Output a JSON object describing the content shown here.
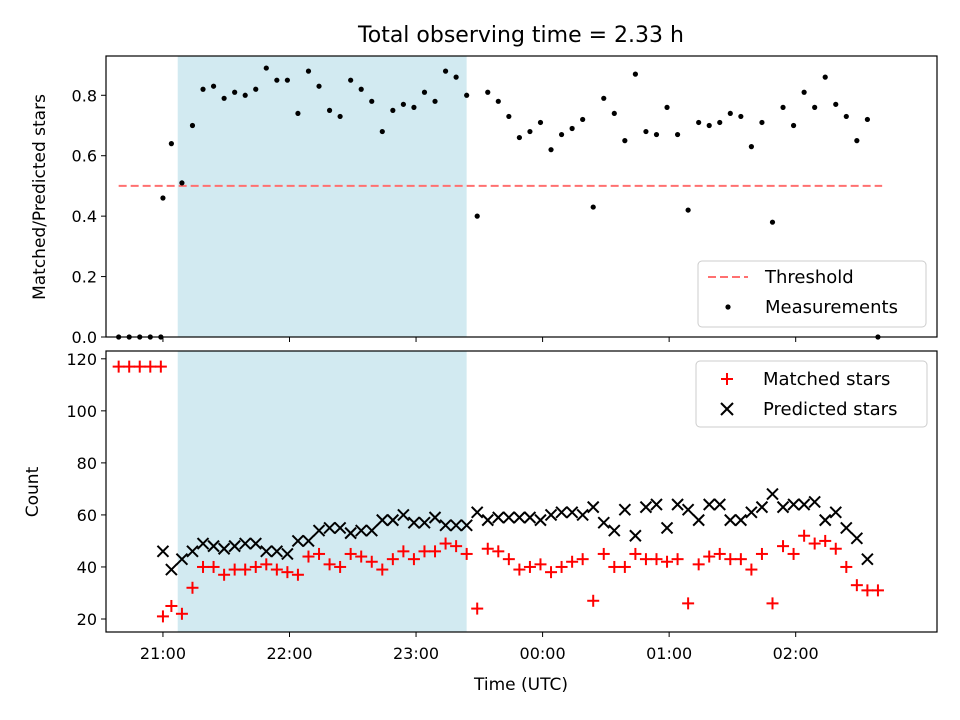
{
  "chart_data": [
    {
      "type": "scatter",
      "title": "Total observing time = 2.33 h",
      "xlabel": "",
      "ylabel": "Matched/Predicted stars",
      "ylim": [
        0,
        0.93
      ],
      "yticks": [
        "0.0",
        "0.2",
        "0.4",
        "0.6",
        "0.8"
      ],
      "xlim": [
        "20:33",
        "03:07"
      ],
      "shaded_region": {
        "start": "21:07",
        "end": "23:24",
        "color": "#add8e6"
      },
      "threshold": {
        "name": "Threshold",
        "value": 0.5,
        "start": "20:39",
        "end": "02:41",
        "color": "#ff7070"
      },
      "legend": {
        "placement": "lower right",
        "entries": [
          "Threshold",
          "Measurements"
        ]
      },
      "series": [
        {
          "name": "Measurements",
          "color": "#000000",
          "x": [
            "20:39",
            "20:44",
            "20:49",
            "20:54",
            "20:59",
            "21:00",
            "21:04",
            "21:09",
            "21:14",
            "21:19",
            "21:24",
            "21:29",
            "21:34",
            "21:39",
            "21:44",
            "21:49",
            "21:54",
            "21:59",
            "22:04",
            "22:09",
            "22:14",
            "22:19",
            "22:24",
            "22:29",
            "22:34",
            "22:39",
            "22:44",
            "22:49",
            "22:54",
            "22:59",
            "23:04",
            "23:09",
            "23:14",
            "23:19",
            "23:24",
            "23:29",
            "23:34",
            "23:39",
            "23:44",
            "23:49",
            "23:54",
            "23:59",
            "00:04",
            "00:09",
            "00:14",
            "00:19",
            "00:24",
            "00:29",
            "00:34",
            "00:39",
            "00:44",
            "00:49",
            "00:54",
            "00:59",
            "01:04",
            "01:09",
            "01:14",
            "01:19",
            "01:24",
            "01:29",
            "01:34",
            "01:39",
            "01:44",
            "01:49",
            "01:54",
            "01:59",
            "02:04",
            "02:09",
            "02:14",
            "02:19",
            "02:24",
            "02:29",
            "02:34",
            "02:39"
          ],
          "y": [
            0,
            0,
            0,
            0,
            0,
            0.46,
            0.64,
            0.51,
            0.7,
            0.82,
            0.83,
            0.79,
            0.81,
            0.8,
            0.82,
            0.89,
            0.85,
            0.85,
            0.74,
            0.88,
            0.83,
            0.75,
            0.73,
            0.85,
            0.82,
            0.78,
            0.68,
            0.75,
            0.77,
            0.76,
            0.81,
            0.78,
            0.88,
            0.86,
            0.8,
            0.4,
            0.81,
            0.78,
            0.73,
            0.66,
            0.68,
            0.71,
            0.62,
            0.67,
            0.69,
            0.72,
            0.43,
            0.79,
            0.74,
            0.65,
            0.87,
            0.68,
            0.67,
            0.76,
            0.67,
            0.42,
            0.71,
            0.7,
            0.71,
            0.74,
            0.73,
            0.63,
            0.71,
            0.38,
            0.76,
            0.7,
            0.81,
            0.76,
            0.86,
            0.77,
            0.73,
            0.65,
            0.72,
            0
          ]
        }
      ]
    },
    {
      "type": "scatter",
      "title": "",
      "xlabel": "Time (UTC)",
      "ylabel": "Count",
      "ylim": [
        15,
        123
      ],
      "yticks": [
        "20",
        "40",
        "60",
        "80",
        "100",
        "120"
      ],
      "xlim": [
        "20:33",
        "03:07"
      ],
      "xticks": [
        "21:00",
        "22:00",
        "23:00",
        "00:00",
        "01:00",
        "02:00"
      ],
      "shaded_region": {
        "start": "21:07",
        "end": "23:24",
        "color": "#add8e6"
      },
      "legend": {
        "placement": "top-right",
        "entries": [
          "Matched stars",
          "Predicted stars"
        ]
      },
      "series": [
        {
          "name": "Matched stars",
          "marker": "+",
          "color": "#ff0000",
          "x": [
            "20:39",
            "20:44",
            "20:49",
            "20:54",
            "20:59",
            "21:00",
            "21:04",
            "21:09",
            "21:14",
            "21:19",
            "21:24",
            "21:29",
            "21:34",
            "21:39",
            "21:44",
            "21:49",
            "21:54",
            "21:59",
            "22:04",
            "22:09",
            "22:14",
            "22:19",
            "22:24",
            "22:29",
            "22:34",
            "22:39",
            "22:44",
            "22:49",
            "22:54",
            "22:59",
            "23:04",
            "23:09",
            "23:14",
            "23:19",
            "23:24",
            "23:29",
            "23:34",
            "23:39",
            "23:44",
            "23:49",
            "23:54",
            "23:59",
            "00:04",
            "00:09",
            "00:14",
            "00:19",
            "00:24",
            "00:29",
            "00:34",
            "00:39",
            "00:44",
            "00:49",
            "00:54",
            "00:59",
            "01:04",
            "01:09",
            "01:14",
            "01:19",
            "01:24",
            "01:29",
            "01:34",
            "01:39",
            "01:44",
            "01:49",
            "01:54",
            "01:59",
            "02:04",
            "02:09",
            "02:14",
            "02:19",
            "02:24",
            "02:29",
            "02:34",
            "02:39"
          ],
          "y": [
            117,
            117,
            117,
            117,
            117,
            21,
            25,
            22,
            32,
            40,
            40,
            37,
            39,
            39,
            40,
            41,
            39,
            38,
            37,
            44,
            45,
            41,
            40,
            45,
            44,
            42,
            39,
            43,
            46,
            43,
            46,
            46,
            49,
            48,
            45,
            24,
            47,
            46,
            43,
            39,
            40,
            41,
            38,
            40,
            42,
            43,
            27,
            45,
            40,
            40,
            45,
            43,
            43,
            42,
            43,
            26,
            41,
            44,
            45,
            43,
            43,
            39,
            45,
            26,
            48,
            45,
            52,
            49,
            50,
            47,
            40,
            33,
            31,
            31
          ]
        },
        {
          "name": "Predicted stars",
          "marker": "x",
          "color": "#000000",
          "x": [
            "21:00",
            "21:04",
            "21:09",
            "21:14",
            "21:19",
            "21:24",
            "21:29",
            "21:34",
            "21:39",
            "21:44",
            "21:49",
            "21:54",
            "21:59",
            "22:04",
            "22:09",
            "22:14",
            "22:19",
            "22:24",
            "22:29",
            "22:34",
            "22:39",
            "22:44",
            "22:49",
            "22:54",
            "22:59",
            "23:04",
            "23:09",
            "23:14",
            "23:19",
            "23:24",
            "23:29",
            "23:34",
            "23:39",
            "23:44",
            "23:49",
            "23:54",
            "23:59",
            "00:04",
            "00:09",
            "00:14",
            "00:19",
            "00:24",
            "00:29",
            "00:34",
            "00:39",
            "00:44",
            "00:49",
            "00:54",
            "00:59",
            "01:04",
            "01:09",
            "01:14",
            "01:19",
            "01:24",
            "01:29",
            "01:34",
            "01:39",
            "01:44",
            "01:49",
            "01:54",
            "01:59",
            "02:04",
            "02:09",
            "02:14",
            "02:19",
            "02:24",
            "02:29",
            "02:34"
          ],
          "y": [
            46,
            39,
            43,
            46,
            49,
            48,
            47,
            48,
            49,
            49,
            46,
            46,
            45,
            50,
            50,
            54,
            55,
            55,
            53,
            54,
            54,
            58,
            58,
            60,
            57,
            57,
            59,
            56,
            56,
            56,
            61,
            58,
            59,
            59,
            59,
            59,
            58,
            60,
            61,
            61,
            60,
            63,
            57,
            54,
            62,
            52,
            63,
            64,
            55,
            64,
            62,
            58,
            64,
            64,
            58,
            58,
            61,
            63,
            68,
            63,
            64,
            64,
            65,
            58,
            61,
            55,
            51,
            43
          ]
        }
      ]
    }
  ]
}
